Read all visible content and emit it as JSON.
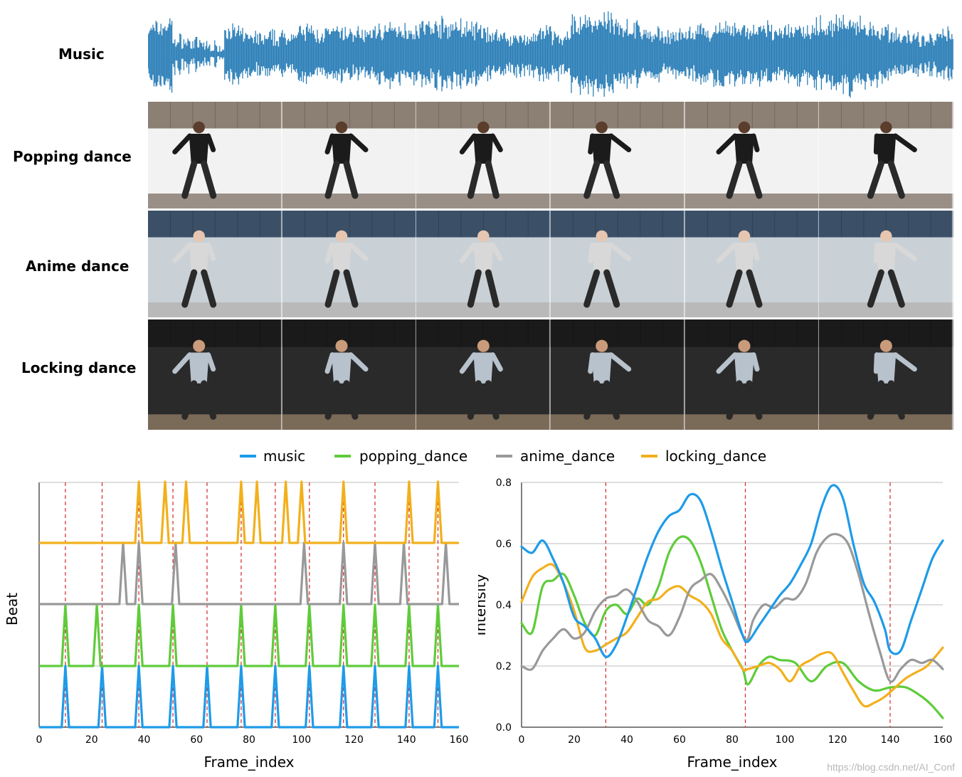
{
  "rows": [
    {
      "label": "Music"
    },
    {
      "label": "Popping dance"
    },
    {
      "label": "Anime dance"
    },
    {
      "label": "Locking dance"
    }
  ],
  "legend": [
    {
      "name": "music",
      "color": "#1e9be9"
    },
    {
      "name": "popping_dance",
      "color": "#5fcc3a"
    },
    {
      "name": "anime_dance",
      "color": "#999999"
    },
    {
      "name": "locking_dance",
      "color": "#f2b01c"
    }
  ],
  "watermark": "https://blog.csdn.net/AI_Conf",
  "chart_data": [
    {
      "type": "line",
      "xlabel": "Frame_index",
      "ylabel": "Beat",
      "xlim": [
        0,
        160
      ],
      "xticks": [
        0,
        20,
        40,
        60,
        80,
        100,
        120,
        140,
        160
      ],
      "grid": true,
      "reference_lines_x": [
        10,
        24,
        38,
        51,
        64,
        77,
        90,
        103,
        116,
        128,
        141,
        152
      ],
      "series": [
        {
          "name": "music",
          "baseline": 0,
          "beats": [
            10,
            24,
            38,
            51,
            64,
            77,
            90,
            103,
            116,
            128,
            141,
            152
          ]
        },
        {
          "name": "popping_dance",
          "baseline": 1,
          "beats": [
            10,
            22,
            38,
            51,
            77,
            90,
            103,
            116,
            128,
            141,
            152
          ]
        },
        {
          "name": "anime_dance",
          "baseline": 2,
          "beats": [
            32,
            38,
            52,
            101,
            116,
            128,
            139,
            155
          ]
        },
        {
          "name": "locking_dance",
          "baseline": 3,
          "beats": [
            38,
            48,
            56,
            77,
            83,
            94,
            100,
            116,
            141,
            152
          ]
        }
      ]
    },
    {
      "type": "line",
      "xlabel": "Frame_index",
      "ylabel": "Intensity",
      "xlim": [
        0,
        160
      ],
      "ylim": [
        0,
        0.8
      ],
      "xticks": [
        0,
        20,
        40,
        60,
        80,
        100,
        120,
        140,
        160
      ],
      "yticks": [
        0.0,
        0.2,
        0.4,
        0.6,
        0.8
      ],
      "grid": true,
      "reference_lines_x": [
        32,
        85,
        140
      ],
      "series": [
        {
          "name": "music",
          "x": [
            0,
            4,
            8,
            12,
            16,
            20,
            24,
            28,
            32,
            36,
            40,
            44,
            48,
            52,
            56,
            60,
            64,
            68,
            72,
            76,
            80,
            84,
            86,
            90,
            94,
            98,
            102,
            106,
            110,
            114,
            118,
            122,
            126,
            130,
            134,
            138,
            140,
            144,
            148,
            152,
            156,
            160
          ],
          "y": [
            0.59,
            0.57,
            0.61,
            0.55,
            0.47,
            0.36,
            0.33,
            0.29,
            0.23,
            0.27,
            0.36,
            0.46,
            0.56,
            0.64,
            0.69,
            0.71,
            0.76,
            0.74,
            0.64,
            0.52,
            0.41,
            0.3,
            0.28,
            0.33,
            0.38,
            0.43,
            0.47,
            0.53,
            0.6,
            0.72,
            0.79,
            0.75,
            0.6,
            0.47,
            0.41,
            0.32,
            0.25,
            0.25,
            0.35,
            0.45,
            0.55,
            0.61
          ]
        },
        {
          "name": "popping_dance",
          "x": [
            0,
            4,
            8,
            12,
            16,
            20,
            24,
            28,
            32,
            36,
            40,
            44,
            48,
            52,
            56,
            60,
            64,
            68,
            72,
            76,
            80,
            84,
            86,
            90,
            94,
            98,
            104,
            110,
            116,
            122,
            128,
            134,
            140,
            146,
            152,
            156,
            160
          ],
          "y": [
            0.34,
            0.31,
            0.46,
            0.48,
            0.5,
            0.43,
            0.34,
            0.3,
            0.38,
            0.4,
            0.37,
            0.42,
            0.4,
            0.46,
            0.57,
            0.62,
            0.61,
            0.54,
            0.43,
            0.32,
            0.25,
            0.19,
            0.14,
            0.2,
            0.23,
            0.22,
            0.21,
            0.15,
            0.2,
            0.21,
            0.15,
            0.12,
            0.13,
            0.13,
            0.1,
            0.07,
            0.03
          ]
        },
        {
          "name": "anime_dance",
          "x": [
            0,
            4,
            8,
            12,
            16,
            20,
            24,
            28,
            32,
            36,
            40,
            44,
            48,
            52,
            56,
            60,
            64,
            68,
            72,
            76,
            80,
            84,
            86,
            88,
            92,
            96,
            100,
            104,
            108,
            112,
            116,
            120,
            124,
            128,
            132,
            136,
            140,
            144,
            148,
            152,
            156,
            160
          ],
          "y": [
            0.2,
            0.19,
            0.25,
            0.29,
            0.32,
            0.29,
            0.31,
            0.38,
            0.42,
            0.43,
            0.45,
            0.41,
            0.35,
            0.33,
            0.3,
            0.36,
            0.45,
            0.48,
            0.5,
            0.45,
            0.38,
            0.3,
            0.29,
            0.35,
            0.4,
            0.39,
            0.42,
            0.42,
            0.47,
            0.57,
            0.62,
            0.63,
            0.6,
            0.5,
            0.37,
            0.25,
            0.15,
            0.19,
            0.22,
            0.21,
            0.22,
            0.19
          ]
        },
        {
          "name": "locking_dance",
          "x": [
            0,
            4,
            8,
            12,
            16,
            20,
            24,
            28,
            32,
            36,
            40,
            44,
            48,
            52,
            56,
            60,
            64,
            68,
            72,
            76,
            80,
            84,
            86,
            90,
            94,
            98,
            102,
            106,
            110,
            114,
            118,
            122,
            126,
            130,
            134,
            138,
            142,
            146,
            150,
            154,
            160
          ],
          "y": [
            0.41,
            0.49,
            0.52,
            0.53,
            0.47,
            0.38,
            0.26,
            0.25,
            0.27,
            0.29,
            0.31,
            0.36,
            0.41,
            0.42,
            0.45,
            0.46,
            0.43,
            0.41,
            0.37,
            0.29,
            0.25,
            0.19,
            0.19,
            0.2,
            0.21,
            0.19,
            0.15,
            0.2,
            0.22,
            0.24,
            0.24,
            0.18,
            0.12,
            0.07,
            0.08,
            0.1,
            0.13,
            0.16,
            0.18,
            0.2,
            0.26
          ]
        }
      ]
    }
  ]
}
